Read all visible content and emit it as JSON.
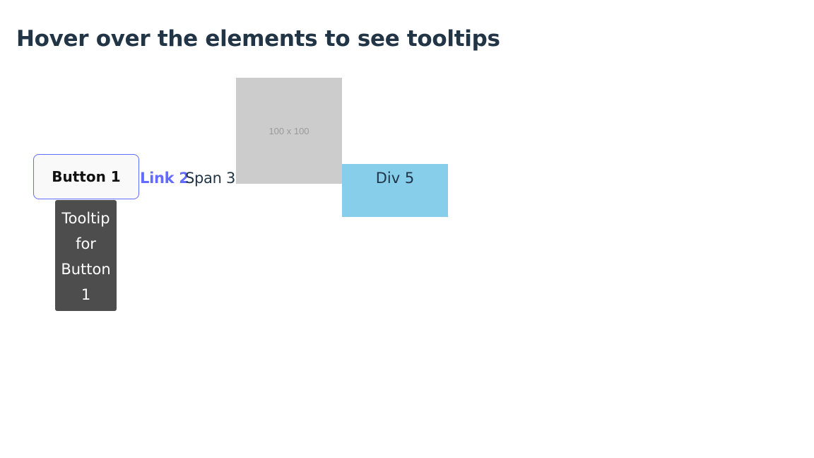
{
  "page": {
    "title": "Hover over the elements to see tooltips"
  },
  "elements": {
    "button_1": "Button 1",
    "link_2": "Link 2",
    "span_3": "Span 3",
    "image_4_label": "100 x 100",
    "div_5": "Div 5"
  },
  "tooltip": {
    "text": "Tooltip for Button 1"
  },
  "colors": {
    "accent": "#646cff",
    "div_background": "#87ceeb",
    "tooltip_background": "#4d4d4d",
    "placeholder_background": "#cccccc",
    "heading": "#213547"
  }
}
